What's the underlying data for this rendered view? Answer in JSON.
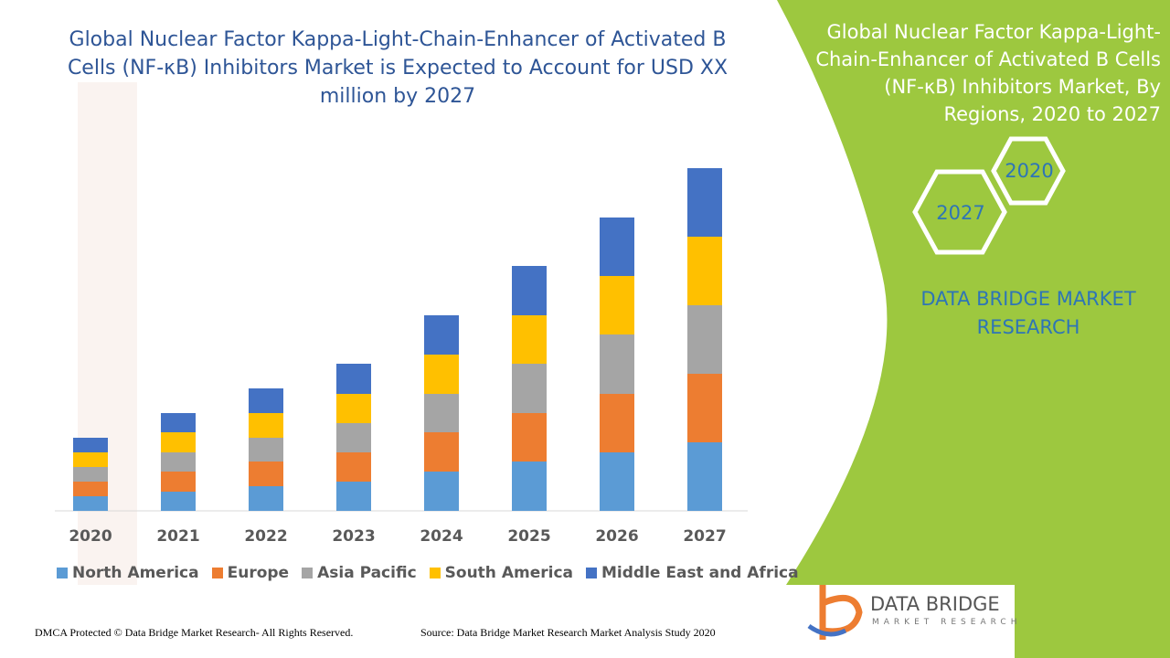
{
  "chart_data": {
    "type": "bar",
    "stacked": true,
    "title": "Global Nuclear Factor Kappa-Light-Chain-Enhancer of Activated B Cells (NF-κB) Inhibitors Market is Expected to Account for USD XX million by 2027",
    "categories": [
      "2020",
      "2021",
      "2022",
      "2023",
      "2024",
      "2025",
      "2026",
      "2027"
    ],
    "series": [
      {
        "name": "North America",
        "color": "#5b9bd5",
        "values": [
          16,
          21,
          27,
          32,
          43,
          54,
          64,
          75
        ]
      },
      {
        "name": "Europe",
        "color": "#ed7d31",
        "values": [
          16,
          22,
          27,
          32,
          43,
          53,
          64,
          75
        ]
      },
      {
        "name": "Asia Pacific",
        "color": "#a5a5a5",
        "values": [
          16,
          21,
          26,
          32,
          42,
          54,
          65,
          75
        ]
      },
      {
        "name": "South America",
        "color": "#ffc000",
        "values": [
          16,
          22,
          27,
          32,
          43,
          53,
          64,
          75
        ]
      },
      {
        "name": "Middle East and Africa",
        "color": "#4472c4",
        "values": [
          16,
          21,
          27,
          33,
          43,
          54,
          64,
          75
        ]
      }
    ],
    "legend": "bottom",
    "grid": false
  },
  "side_panel": {
    "title": "Global Nuclear Factor Kappa-Light-Chain-Enhancer of Activated B Cells (NF-κB) Inhibitors Market, By Regions, 2020 to 2027",
    "hex_labels": [
      "2020",
      "2027"
    ],
    "brand": "DATA BRIDGE MARKET RESEARCH"
  },
  "footer": {
    "left": "DMCA Protected © Data Bridge Market Research- All Rights Reserved.",
    "right": "Source: Data Bridge Market Research Market Analysis Study 2020"
  },
  "logo": {
    "name": "DATA BRIDGE",
    "tagline": "MARKET RESEARCH"
  }
}
